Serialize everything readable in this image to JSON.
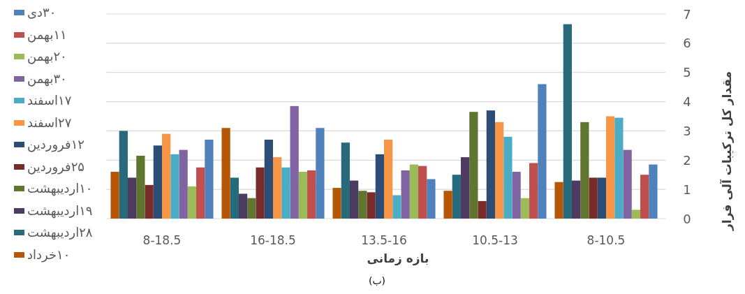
{
  "chart_data": {
    "type": "bar",
    "xlabel": "بازه زمانی",
    "ylabel": "مقدار کل ترکیبات آلی فرار",
    "annotations": [
      "(ب)"
    ],
    "categories": [
      "8-18.5",
      "16-18.5",
      "13.5-16",
      "10.5-13",
      "8-10.5"
    ],
    "series": [
      {
        "name": "۳۰دی",
        "color": "#4f81bd",
        "values": [
          2.7,
          3.1,
          1.35,
          4.6,
          1.85
        ]
      },
      {
        "name": "۱۱بهمن",
        "color": "#c0504d",
        "values": [
          1.75,
          1.65,
          1.8,
          1.9,
          1.5
        ]
      },
      {
        "name": "۲۰بهمن",
        "color": "#9bbb59",
        "values": [
          1.1,
          1.6,
          1.85,
          0.7,
          0.3
        ]
      },
      {
        "name": "۳۰بهمن",
        "color": "#8064a2",
        "values": [
          2.35,
          3.85,
          1.65,
          1.6,
          2.35
        ]
      },
      {
        "name": "۱۷اسفند",
        "color": "#4bacc6",
        "values": [
          2.2,
          1.75,
          0.8,
          2.8,
          3.45
        ]
      },
      {
        "name": "۲۷اسفند",
        "color": "#f79646",
        "values": [
          2.9,
          2.1,
          2.7,
          3.3,
          3.5
        ]
      },
      {
        "name": "۱۲فروردین",
        "color": "#2c4d75",
        "values": [
          2.5,
          2.7,
          2.2,
          3.7,
          1.4
        ]
      },
      {
        "name": "۲۵فروردین",
        "color": "#772c2a",
        "values": [
          1.15,
          1.75,
          0.9,
          0.6,
          1.4
        ]
      },
      {
        "name": "۱۰اردیبهشت",
        "color": "#5f7530",
        "values": [
          2.15,
          0.7,
          0.95,
          3.65,
          3.3
        ]
      },
      {
        "name": "۱۹اردیبهشت",
        "color": "#4d3b62",
        "values": [
          1.4,
          0.85,
          1.3,
          2.1,
          1.3
        ]
      },
      {
        "name": "۲۸اردیبهشت",
        "color": "#276a7c",
        "values": [
          3.0,
          1.4,
          2.6,
          1.5,
          6.65
        ]
      },
      {
        "name": "۱۰خرداد",
        "color": "#b65708",
        "values": [
          1.6,
          3.1,
          1.05,
          0.95,
          1.25
        ]
      }
    ],
    "ylim": [
      0,
      7
    ],
    "yticks": [
      0,
      1,
      2,
      3,
      4,
      5,
      6,
      7
    ],
    "grid": "y",
    "legend": "left"
  }
}
